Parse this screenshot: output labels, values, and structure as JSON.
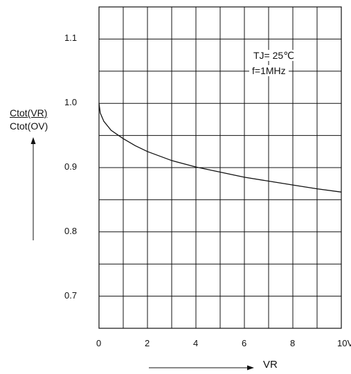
{
  "chart_data": {
    "type": "line",
    "x": [
      0,
      0.05,
      0.2,
      0.5,
      1,
      1.5,
      2,
      3,
      4,
      5,
      6,
      7,
      8,
      9,
      10
    ],
    "series": [
      {
        "values": [
          1.0,
          0.985,
          0.972,
          0.958,
          0.945,
          0.934,
          0.925,
          0.911,
          0.901,
          0.893,
          0.885,
          0.879,
          0.873,
          0.867,
          0.862
        ]
      }
    ],
    "xlim": [
      0,
      10
    ],
    "ylim": [
      0.65,
      1.15
    ],
    "x_ticks": [
      0,
      2,
      4,
      6,
      8,
      10
    ],
    "x_tick_labels": [
      "0",
      "2",
      "4",
      "6",
      "8",
      "10V"
    ],
    "y_ticks": [
      0.7,
      0.8,
      0.9,
      1.0,
      1.1
    ],
    "y_tick_labels": [
      "0.7",
      "0.8",
      "0.9",
      "1.0",
      "1.1"
    ],
    "grid": true,
    "ylabel": {
      "numerator": "Ctot(VR)",
      "denominator": "Ctot(OV)"
    },
    "xlabel": "VR",
    "annotations": [
      "TJ= 25℃",
      "f=1MHz"
    ],
    "colors": {
      "line": "#111111",
      "grid": "#111111"
    }
  }
}
